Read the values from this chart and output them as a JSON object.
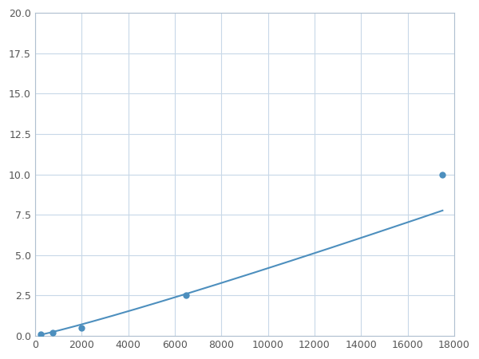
{
  "x_points": [
    250,
    750,
    2000,
    6500,
    17500
  ],
  "y_points": [
    0.1,
    0.2,
    0.5,
    2.5,
    10.0
  ],
  "xlim": [
    0,
    18000
  ],
  "ylim": [
    0,
    20.0
  ],
  "xticks": [
    0,
    2000,
    4000,
    6000,
    8000,
    10000,
    12000,
    14000,
    16000,
    18000
  ],
  "yticks": [
    0.0,
    2.5,
    5.0,
    7.5,
    10.0,
    12.5,
    15.0,
    17.5,
    20.0
  ],
  "line_color": "#4d8fbe",
  "marker_color": "#4d8fbe",
  "marker_size": 6,
  "line_width": 1.5,
  "grid_color": "#c8d8e8",
  "background_color": "#ffffff",
  "spine_color": "#b0c0d0"
}
